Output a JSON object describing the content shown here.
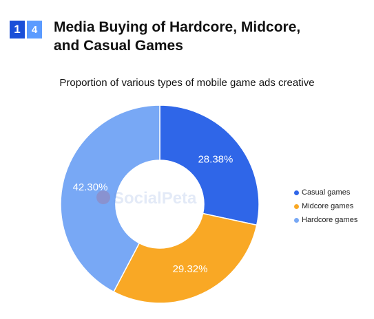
{
  "header": {
    "section_number": [
      "1",
      "4"
    ],
    "title_line1": "Media Buying of Hardcore, Midcore,",
    "title_line2": "and Casual Games"
  },
  "watermark": "SocialPeta",
  "colors": {
    "badge_primary": "#1a4fd8",
    "badge_secondary": "#5b9bff"
  },
  "chart_data": {
    "type": "pie",
    "title": "Proportion of various types of mobile game ads creative",
    "donut": true,
    "legend_position": "right",
    "series": [
      {
        "name": "Casual games",
        "value": 28.38,
        "label": "28.38%",
        "color": "#2f66e8"
      },
      {
        "name": "Midcore games",
        "value": 29.32,
        "label": "29.32%",
        "color": "#f9a825"
      },
      {
        "name": "Hardcore games",
        "value": 42.3,
        "label": "42.30%",
        "color": "#78a8f5"
      }
    ]
  }
}
